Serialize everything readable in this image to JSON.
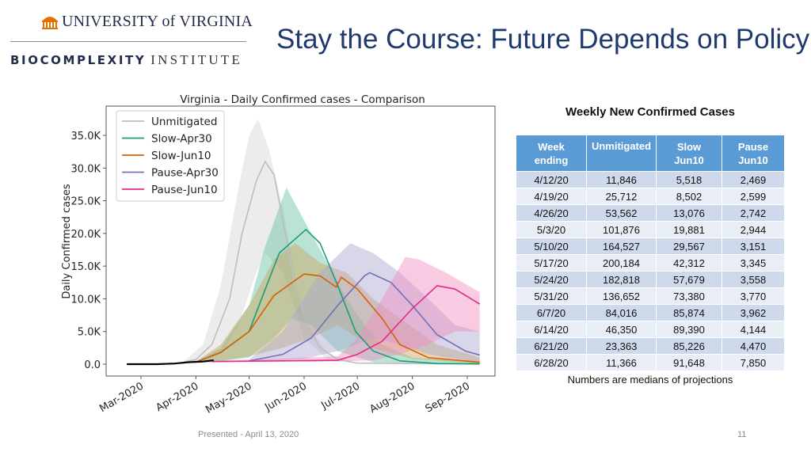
{
  "header": {
    "logo_university": "UNIVERSITY of VIRGINIA",
    "logo_institute_bold": "BIOCOMPLEXITY",
    "logo_institute_light": "INSTITUTE",
    "title": "Stay the Course: Future Depends on Policy"
  },
  "chart_data": {
    "type": "line",
    "title": "Virginia - Daily Confirmed cases - Comparison",
    "xlabel": "",
    "ylabel": "Daily Confirmed cases",
    "ylim": [
      -1700,
      39800
    ],
    "yticks": [
      0,
      5000,
      10000,
      15000,
      20000,
      25000,
      30000,
      35000
    ],
    "ytick_labels": [
      "0.0",
      "5.0K",
      "10.0K",
      "15.0K",
      "20.0K",
      "25.0K",
      "30.0K",
      "35.0K"
    ],
    "xticks": [
      "2020-03-01",
      "2020-04-01",
      "2020-05-01",
      "2020-06-01",
      "2020-07-01",
      "2020-08-01",
      "2020-09-01"
    ],
    "xtick_labels": [
      "Mar-2020",
      "Apr-2020",
      "May-2020",
      "Jun-2020",
      "Jul-2020",
      "Aug-2020",
      "Sep-2020"
    ],
    "xlim": [
      "2020-02-15",
      "2020-09-15"
    ],
    "grid": false,
    "legend": "top-left",
    "observed": {
      "color": "#000000",
      "points": [
        [
          "2020-02-22",
          0
        ],
        [
          "2020-03-10",
          0
        ],
        [
          "2020-03-20",
          100
        ],
        [
          "2020-03-28",
          300
        ],
        [
          "2020-04-05",
          400
        ],
        [
          "2020-04-11",
          600
        ]
      ]
    },
    "series": [
      {
        "name": "Unmitigated",
        "color": "#bdbdbd",
        "band_color": "#d4d4d4",
        "points": [
          [
            "2020-03-25",
            300
          ],
          [
            "2020-04-01",
            700
          ],
          [
            "2020-04-10",
            3000
          ],
          [
            "2020-04-20",
            10000
          ],
          [
            "2020-04-27",
            20000
          ],
          [
            "2020-05-05",
            28000
          ],
          [
            "2020-05-10",
            31000
          ],
          [
            "2020-05-15",
            29000
          ],
          [
            "2020-05-20",
            22000
          ],
          [
            "2020-05-27",
            12000
          ],
          [
            "2020-06-03",
            6000
          ],
          [
            "2020-06-10",
            2500
          ],
          [
            "2020-06-20",
            700
          ],
          [
            "2020-07-01",
            150
          ],
          [
            "2020-09-08",
            0
          ]
        ],
        "upper": [
          [
            "2020-03-25",
            400
          ],
          [
            "2020-04-05",
            3000
          ],
          [
            "2020-04-15",
            12000
          ],
          [
            "2020-04-25",
            27000
          ],
          [
            "2020-05-01",
            35000
          ],
          [
            "2020-05-06",
            37500
          ],
          [
            "2020-05-12",
            33000
          ],
          [
            "2020-05-20",
            24000
          ],
          [
            "2020-05-28",
            12000
          ],
          [
            "2020-06-05",
            5000
          ],
          [
            "2020-06-15",
            1500
          ],
          [
            "2020-07-01",
            300
          ],
          [
            "2020-09-08",
            0
          ]
        ],
        "lower": [
          [
            "2020-03-25",
            200
          ],
          [
            "2020-04-01",
            300
          ],
          [
            "2020-04-15",
            1500
          ],
          [
            "2020-04-25",
            6000
          ],
          [
            "2020-05-05",
            14000
          ],
          [
            "2020-05-10",
            17000
          ],
          [
            "2020-05-20",
            14000
          ],
          [
            "2020-06-01",
            4000
          ],
          [
            "2020-06-15",
            500
          ],
          [
            "2020-09-08",
            0
          ]
        ]
      },
      {
        "name": "Slow-Apr30",
        "color": "#1b9e77",
        "band_color": "#66c2a5",
        "points": [
          [
            "2020-04-01",
            300
          ],
          [
            "2020-04-15",
            1800
          ],
          [
            "2020-05-01",
            5000
          ],
          [
            "2020-05-08",
            10000
          ],
          [
            "2020-05-18",
            17000
          ],
          [
            "2020-06-02",
            20600
          ],
          [
            "2020-06-10",
            18500
          ],
          [
            "2020-06-20",
            12000
          ],
          [
            "2020-06-30",
            5000
          ],
          [
            "2020-07-10",
            2000
          ],
          [
            "2020-07-25",
            500
          ],
          [
            "2020-08-15",
            100
          ],
          [
            "2020-09-08",
            50
          ]
        ],
        "upper": [
          [
            "2020-04-01",
            400
          ],
          [
            "2020-04-15",
            2500
          ],
          [
            "2020-05-01",
            9000
          ],
          [
            "2020-05-10",
            18000
          ],
          [
            "2020-05-22",
            27000
          ],
          [
            "2020-06-01",
            22000
          ],
          [
            "2020-06-15",
            15000
          ],
          [
            "2020-06-25",
            10000
          ],
          [
            "2020-07-05",
            6000
          ],
          [
            "2020-07-15",
            3000
          ],
          [
            "2020-08-01",
            1000
          ],
          [
            "2020-09-08",
            300
          ]
        ],
        "lower": [
          [
            "2020-04-10",
            300
          ],
          [
            "2020-05-01",
            1000
          ],
          [
            "2020-05-15",
            4000
          ],
          [
            "2020-05-25",
            7000
          ],
          [
            "2020-06-05",
            6000
          ],
          [
            "2020-06-20",
            2000
          ],
          [
            "2020-07-10",
            300
          ],
          [
            "2020-09-08",
            0
          ]
        ]
      },
      {
        "name": "Slow-Jun10",
        "color": "#d95f02",
        "band_color": "#c9a25a",
        "points": [
          [
            "2020-04-01",
            300
          ],
          [
            "2020-04-15",
            1800
          ],
          [
            "2020-05-01",
            5000
          ],
          [
            "2020-05-15",
            10500
          ],
          [
            "2020-06-01",
            13800
          ],
          [
            "2020-06-10",
            13500
          ],
          [
            "2020-06-19",
            11800
          ],
          [
            "2020-06-22",
            13300
          ],
          [
            "2020-07-01",
            11500
          ],
          [
            "2020-07-15",
            7000
          ],
          [
            "2020-07-25",
            3000
          ],
          [
            "2020-08-10",
            1000
          ],
          [
            "2020-09-08",
            300
          ]
        ],
        "upper": [
          [
            "2020-04-01",
            400
          ],
          [
            "2020-04-15",
            3000
          ],
          [
            "2020-05-01",
            9000
          ],
          [
            "2020-05-15",
            16000
          ],
          [
            "2020-05-27",
            18500
          ],
          [
            "2020-06-10",
            15500
          ],
          [
            "2020-06-25",
            14000
          ],
          [
            "2020-07-10",
            10000
          ],
          [
            "2020-07-25",
            7000
          ],
          [
            "2020-08-15",
            3000
          ],
          [
            "2020-09-08",
            1000
          ]
        ],
        "lower": [
          [
            "2020-04-10",
            300
          ],
          [
            "2020-05-01",
            1200
          ],
          [
            "2020-05-20",
            2500
          ],
          [
            "2020-06-05",
            4000
          ],
          [
            "2020-06-20",
            6000
          ],
          [
            "2020-07-10",
            2500
          ],
          [
            "2020-08-01",
            800
          ],
          [
            "2020-09-08",
            100
          ]
        ]
      },
      {
        "name": "Pause-Apr30",
        "color": "#7570b3",
        "band_color": "#a9a6cf",
        "points": [
          [
            "2020-05-01",
            500
          ],
          [
            "2020-05-20",
            1500
          ],
          [
            "2020-06-05",
            4000
          ],
          [
            "2020-06-20",
            9000
          ],
          [
            "2020-07-05",
            13500
          ],
          [
            "2020-07-08",
            14000
          ],
          [
            "2020-07-20",
            12500
          ],
          [
            "2020-08-01",
            9000
          ],
          [
            "2020-08-15",
            4500
          ],
          [
            "2020-08-31",
            2000
          ],
          [
            "2020-09-08",
            1400
          ]
        ],
        "upper": [
          [
            "2020-05-01",
            700
          ],
          [
            "2020-05-20",
            5000
          ],
          [
            "2020-06-10",
            14000
          ],
          [
            "2020-06-27",
            18500
          ],
          [
            "2020-07-10",
            17000
          ],
          [
            "2020-07-25",
            14000
          ],
          [
            "2020-08-10",
            10000
          ],
          [
            "2020-08-25",
            6000
          ],
          [
            "2020-09-08",
            5000
          ]
        ],
        "lower": [
          [
            "2020-05-01",
            400
          ],
          [
            "2020-06-01",
            800
          ],
          [
            "2020-06-20",
            2000
          ],
          [
            "2020-07-10",
            4000
          ],
          [
            "2020-07-25",
            3000
          ],
          [
            "2020-08-10",
            1500
          ],
          [
            "2020-09-08",
            300
          ]
        ]
      },
      {
        "name": "Pause-Jun10",
        "color": "#e7298a",
        "band_color": "#f08cbf",
        "points": [
          [
            "2020-04-10",
            400
          ],
          [
            "2020-06-20",
            600
          ],
          [
            "2020-07-01",
            1500
          ],
          [
            "2020-07-15",
            3500
          ],
          [
            "2020-08-01",
            8500
          ],
          [
            "2020-08-15",
            12000
          ],
          [
            "2020-08-25",
            11500
          ],
          [
            "2020-09-08",
            9200
          ]
        ],
        "upper": [
          [
            "2020-04-10",
            500
          ],
          [
            "2020-06-20",
            1200
          ],
          [
            "2020-07-01",
            4000
          ],
          [
            "2020-07-15",
            10000
          ],
          [
            "2020-07-28",
            16400
          ],
          [
            "2020-08-05",
            16000
          ],
          [
            "2020-08-20",
            14000
          ],
          [
            "2020-09-08",
            11000
          ]
        ],
        "lower": [
          [
            "2020-04-10",
            300
          ],
          [
            "2020-06-20",
            400
          ],
          [
            "2020-07-10",
            600
          ],
          [
            "2020-07-25",
            1500
          ],
          [
            "2020-08-10",
            3000
          ],
          [
            "2020-08-25",
            5000
          ],
          [
            "2020-09-08",
            5000
          ]
        ]
      }
    ]
  },
  "table": {
    "title": "Weekly New Confirmed Cases",
    "headers": [
      [
        "Week",
        "ending"
      ],
      [
        "Unmitigated",
        ""
      ],
      [
        "Slow",
        "Jun10"
      ],
      [
        "Pause",
        "Jun10"
      ]
    ],
    "rows": [
      [
        "4/12/20",
        "11,846",
        "5,518",
        "2,469"
      ],
      [
        "4/19/20",
        "25,712",
        "8,502",
        "2,599"
      ],
      [
        "4/26/20",
        "53,562",
        "13,076",
        "2,742"
      ],
      [
        "5/3/20",
        "101,876",
        "19,881",
        "2,944"
      ],
      [
        "5/10/20",
        "164,527",
        "29,567",
        "3,151"
      ],
      [
        "5/17/20",
        "200,184",
        "42,312",
        "3,345"
      ],
      [
        "5/24/20",
        "182,818",
        "57,679",
        "3,558"
      ],
      [
        "5/31/20",
        "136,652",
        "73,380",
        "3,770"
      ],
      [
        "6/7/20",
        "84,016",
        "85,874",
        "3,962"
      ],
      [
        "6/14/20",
        "46,350",
        "89,390",
        "4,144"
      ],
      [
        "6/21/20",
        "23,363",
        "85,226",
        "4,470"
      ],
      [
        "6/28/20",
        "11,366",
        "91,648",
        "7,850"
      ]
    ],
    "note": "Numbers are medians of projections",
    "header_color": "#5b9bd5"
  },
  "footer": {
    "presented": "Presented - April 13, 2020",
    "page": "11"
  }
}
